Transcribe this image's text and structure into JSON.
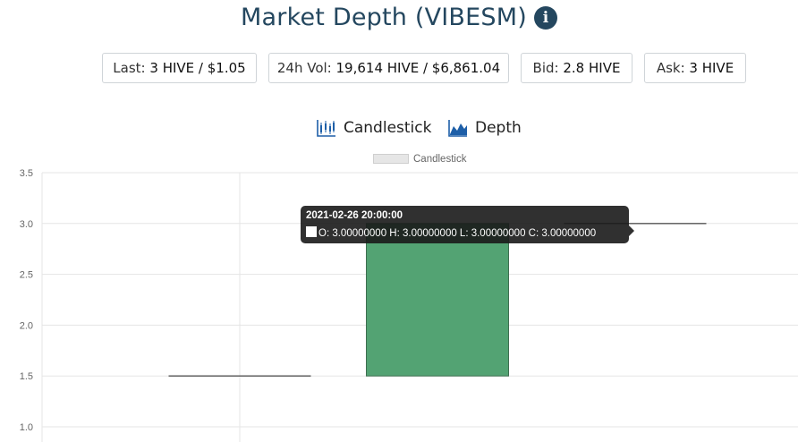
{
  "header": {
    "title": "Market Depth (VIBESM)",
    "info_icon": "info-circle-icon"
  },
  "stats": {
    "last_label": "Last:",
    "last_value": "3 HIVE / $1.05",
    "vol_label": "24h Vol:",
    "vol_value": "19,614 HIVE / $6,861.04",
    "bid_label": "Bid:",
    "bid_value": "2.8 HIVE",
    "ask_label": "Ask:",
    "ask_value": "3 HIVE"
  },
  "view_switch": {
    "candlestick_label": "Candlestick",
    "candlestick_icon": "candlestick-chart-icon",
    "depth_label": "Depth",
    "depth_icon": "area-chart-icon"
  },
  "colors": {
    "up_fill": "#53a373",
    "up_border": "#3e6e50",
    "doji_line": "#555555",
    "grid": "#e5e5e5",
    "axis_text": "#666666",
    "accent": "#24475f",
    "depth_icon": "#1e5fa8"
  },
  "chart_data": {
    "type": "candlestick",
    "legend": [
      "Candlestick"
    ],
    "legend_position": "top",
    "grid": true,
    "ylim": [
      0.9,
      3.5
    ],
    "yticks": [
      "3.5",
      "3.0",
      "2.5",
      "2.0",
      "1.5",
      "1.0"
    ],
    "candles": [
      {
        "open": 1.5,
        "high": 1.5,
        "low": 1.5,
        "close": 1.5
      },
      {
        "open": 1.5,
        "high": 3.0,
        "low": 1.5,
        "close": 3.0
      },
      {
        "open": 3.0,
        "high": 3.0,
        "low": 3.0,
        "close": 3.0
      }
    ],
    "tooltip": {
      "title": "2021-02-26 20:00:00",
      "body": "O: 3.00000000  H: 3.00000000  L: 3.00000000  C: 3.00000000"
    }
  }
}
